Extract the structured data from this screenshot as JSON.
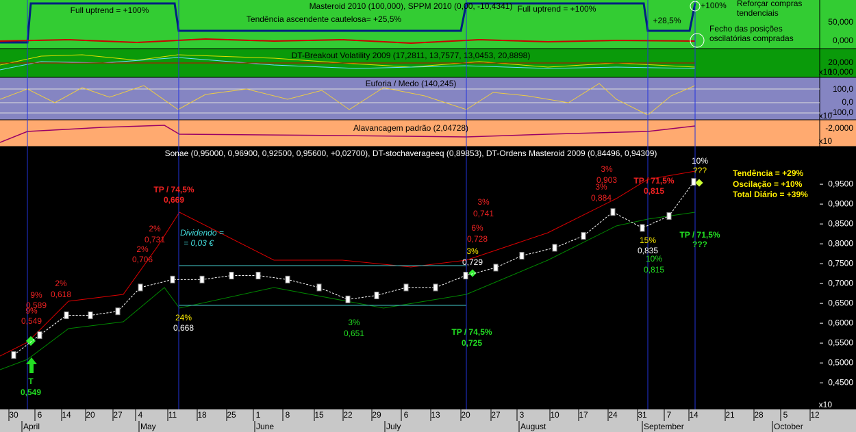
{
  "panels": [
    {
      "title": "Masteroid 2010 (100,000), SPPM 2010 (0,00, -10,4341)",
      "ticks": [
        "50,000",
        "0,000"
      ]
    },
    {
      "title": "DT-Breakout Volatility 2009 (17,2811, 13,7577, 13,0453, 20,8898)",
      "ticks": [
        "20,000",
        "10,000",
        "x10"
      ]
    },
    {
      "title": "Euforia / Medo (140,245)",
      "ticks": [
        "100,0",
        "0,0",
        "-100,0",
        "x10"
      ]
    },
    {
      "title": "Alavancagem padrão (2,04728)",
      "ticks": [
        "-2,0000",
        "x10"
      ]
    }
  ],
  "top_annotations": [
    "Full uptrend = +100%",
    "Tendência ascendente cautelosa= +25,5%",
    "Full uptrend = +100%",
    "+28,5%",
    "+100%",
    "Reforçar compras",
    "tendenciais",
    "Fecho das posições",
    "oscilatórias compradas"
  ],
  "annotations": [
    "9%",
    "0,589",
    "9%",
    "0,549",
    "2%",
    "0,618",
    "2%",
    "0,731",
    "2%",
    "0,706",
    "TP / 74,5%",
    "0,669",
    "Dividendo =",
    "= 0,03 €",
    "24%",
    "0,668",
    "3%",
    "0,651",
    "3%",
    "0,741",
    "6%",
    "0,728",
    "3%",
    "0,729",
    "TP / 74,5%",
    "0,725",
    "3%",
    "0,903",
    "3%",
    "0,884",
    "TP / 71,5%",
    "0,815",
    "15%",
    "0,835",
    "10%",
    "0,815",
    "10%",
    "???",
    "TP / 71,5%",
    "???",
    "T",
    "0,549",
    "Tendência = +29%",
    "Oscilação = +10%",
    "Total Diário = +39%"
  ],
  "months": [
    "April",
    "May",
    "June",
    "July",
    "August",
    "September",
    "October"
  ],
  "chart_data": {
    "type": "line",
    "title": "Sonae (0,95000, 0,96900, 0,92500, 0,95600, +0,02700), DT-stochaverageeq (0,89853), DT-Ordens Masteroid 2009 (0,84496, 0,94309)",
    "categories": [
      "30",
      "6",
      "14",
      "20",
      "27",
      "4",
      "11",
      "18",
      "25",
      "1",
      "8",
      "15",
      "22",
      "29",
      "6",
      "13",
      "20",
      "27",
      "3",
      "10",
      "17",
      "24",
      "31",
      "7",
      "14",
      "21",
      "28",
      "5",
      "12"
    ],
    "values": [
      0.52,
      0.57,
      0.62,
      0.62,
      0.63,
      0.69,
      0.71,
      0.71,
      0.72,
      0.72,
      0.71,
      0.69,
      0.66,
      0.67,
      0.69,
      0.69,
      0.72,
      0.74,
      0.77,
      0.79,
      0.82,
      0.88,
      0.84,
      0.87,
      0.956,
      null,
      null,
      null,
      null
    ],
    "color": "#ffffff",
    "ylim": [
      0.383,
      1.045
    ],
    "yticks": [
      {
        "value": 0.45,
        "label": "0,4500"
      },
      {
        "value": 0.5,
        "label": "0,5000"
      },
      {
        "value": 0.55,
        "label": "0,5500"
      },
      {
        "value": 0.6,
        "label": "0,6000"
      },
      {
        "value": 0.65,
        "label": "0,6500"
      },
      {
        "value": 0.7,
        "label": "0,7000"
      },
      {
        "value": 0.75,
        "label": "0,7500"
      },
      {
        "value": 0.8,
        "label": "0,8000"
      },
      {
        "value": 0.85,
        "label": "0,8500"
      },
      {
        "value": 0.9,
        "label": "0,9000"
      },
      {
        "value": 0.95,
        "label": "0,9500"
      }
    ]
  }
}
